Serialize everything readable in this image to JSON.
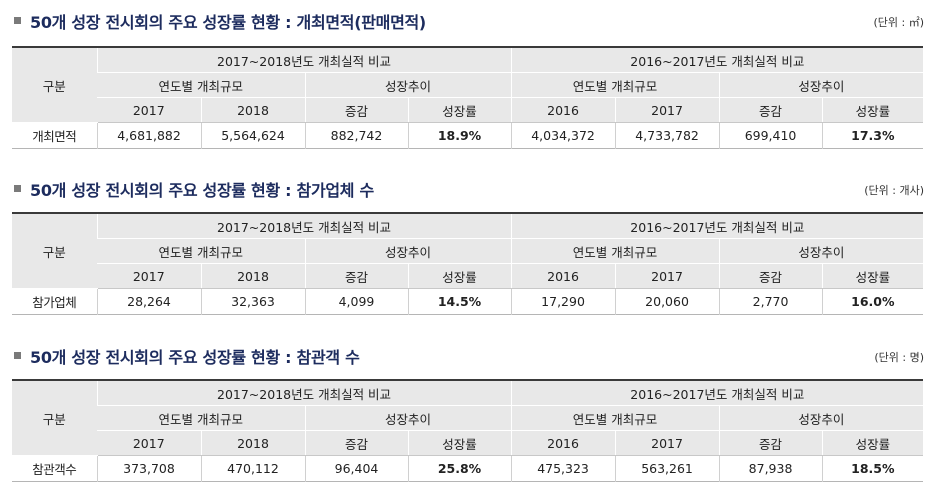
{
  "sections": [
    {
      "title": "50개 성장 전시회의 주요 성장률 현황 : 개최면적(판매면적)",
      "unit": "(단위 : ㎡)",
      "header_col": "구분",
      "group1": "2017~2018년도 개최실적 비교",
      "group2": "2016~2017년도 개최실적 비교",
      "sub_scale": "연도별 개최규모",
      "sub_trend": "성장추이",
      "cols": [
        "2017",
        "2018",
        "증감",
        "성장률",
        "2016",
        "2017",
        "증감",
        "성장률"
      ],
      "row_label": "개최면적",
      "values": [
        "4,681,882",
        "5,564,624",
        "882,742",
        "18.9%",
        "4,034,372",
        "4,733,782",
        "699,410",
        "17.3%"
      ]
    },
    {
      "title": "50개 성장 전시회의 주요 성장률 현황 : 참가업체 수",
      "unit": "(단위 : 개사)",
      "header_col": "구분",
      "group1": "2017~2018년도 개최실적 비교",
      "group2": "2016~2017년도 개최실적 비교",
      "sub_scale": "연도별 개최규모",
      "sub_trend": "성장추이",
      "cols": [
        "2017",
        "2018",
        "증감",
        "성장률",
        "2016",
        "2017",
        "증감",
        "성장률"
      ],
      "row_label": "참가업체",
      "values": [
        "28,264",
        "32,363",
        "4,099",
        "14.5%",
        "17,290",
        "20,060",
        "2,770",
        "16.0%"
      ]
    },
    {
      "title": "50개 성장 전시회의 주요 성장률 현황 : 참관객 수",
      "unit": "(단위 : 명)",
      "header_col": "구분",
      "group1": "2017~2018년도 개최실적 비교",
      "group2": "2016~2017년도 개최실적 비교",
      "sub_scale": "연도별 개최규모",
      "sub_trend": "성장추이",
      "cols": [
        "2017",
        "2018",
        "증감",
        "성장률",
        "2016",
        "2017",
        "증감",
        "성장률"
      ],
      "row_label": "참관객수",
      "values": [
        "373,708",
        "470,112",
        "96,404",
        "25.8%",
        "475,323",
        "563,261",
        "87,938",
        "18.5%"
      ]
    }
  ]
}
